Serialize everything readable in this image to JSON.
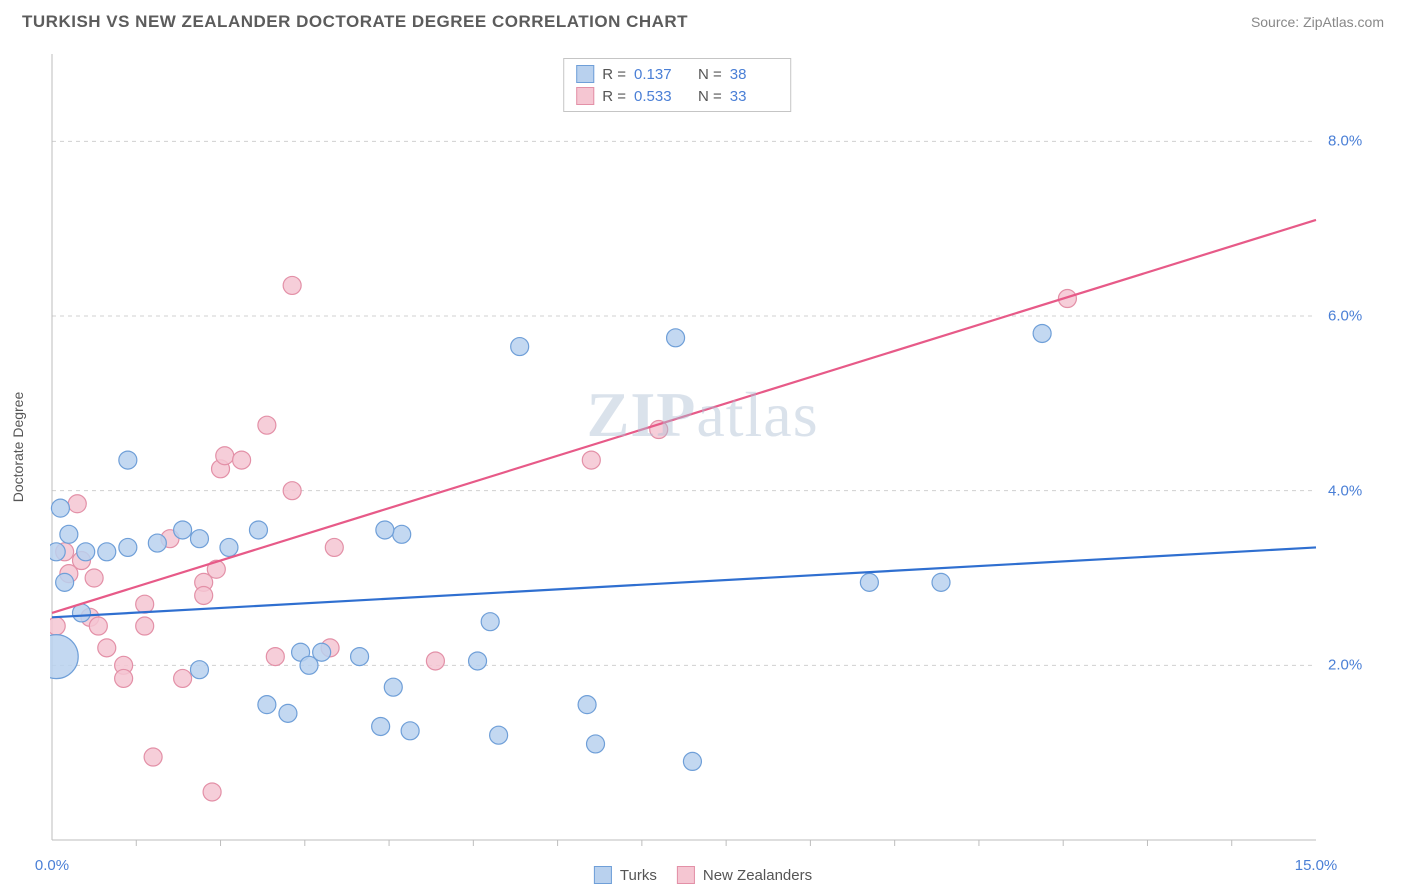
{
  "header": {
    "title": "TURKISH VS NEW ZEALANDER DOCTORATE DEGREE CORRELATION CHART",
    "source_prefix": "Source: ",
    "source_name": "ZipAtlas.com"
  },
  "ylabel": "Doctorate Degree",
  "watermark": {
    "bold": "ZIP",
    "rest": "atlas"
  },
  "chart": {
    "type": "scatter-with-regression",
    "xlim": [
      0,
      15
    ],
    "ylim": [
      0,
      9
    ],
    "x_ticks_minor": [
      1,
      2,
      3,
      4,
      5,
      6,
      7,
      8,
      9,
      10,
      11,
      12,
      13,
      14
    ],
    "x_tick_labels": [
      {
        "v": 0.0,
        "label": "0.0%"
      },
      {
        "v": 15.0,
        "label": "15.0%"
      }
    ],
    "y_gridlines": [
      2,
      4,
      6,
      8
    ],
    "y_tick_labels": [
      {
        "v": 2.0,
        "label": "2.0%"
      },
      {
        "v": 4.0,
        "label": "4.0%"
      },
      {
        "v": 6.0,
        "label": "6.0%"
      },
      {
        "v": 8.0,
        "label": "8.0%"
      }
    ],
    "background_color": "#ffffff",
    "grid_color": "#d0d0d0",
    "axis_color": "#bdbdbd",
    "tick_label_color": "#4a7fd6"
  },
  "series": {
    "turks": {
      "label": "Turks",
      "fill": "#b9d1ee",
      "stroke": "#6f9fd8",
      "line_color": "#2f6fd0",
      "marker_r_default": 9,
      "R": "0.137",
      "N": "38",
      "regression": {
        "x1": 0,
        "y1": 2.55,
        "x2": 15,
        "y2": 3.35
      },
      "points": [
        {
          "x": 0.05,
          "y": 2.1,
          "r": 22
        },
        {
          "x": 0.1,
          "y": 3.8
        },
        {
          "x": 0.2,
          "y": 3.5
        },
        {
          "x": 0.4,
          "y": 3.3
        },
        {
          "x": 0.9,
          "y": 4.35
        },
        {
          "x": 0.65,
          "y": 3.3
        },
        {
          "x": 0.9,
          "y": 3.35
        },
        {
          "x": 1.25,
          "y": 3.4
        },
        {
          "x": 1.55,
          "y": 3.55
        },
        {
          "x": 1.75,
          "y": 3.45
        },
        {
          "x": 2.1,
          "y": 3.35
        },
        {
          "x": 2.45,
          "y": 3.55
        },
        {
          "x": 1.75,
          "y": 1.95
        },
        {
          "x": 2.55,
          "y": 1.55
        },
        {
          "x": 2.8,
          "y": 1.45
        },
        {
          "x": 2.95,
          "y": 2.15
        },
        {
          "x": 3.05,
          "y": 2.0
        },
        {
          "x": 3.2,
          "y": 2.15
        },
        {
          "x": 3.65,
          "y": 2.1
        },
        {
          "x": 3.9,
          "y": 1.3
        },
        {
          "x": 4.05,
          "y": 1.75
        },
        {
          "x": 4.25,
          "y": 1.25
        },
        {
          "x": 5.2,
          "y": 2.5
        },
        {
          "x": 4.15,
          "y": 3.5
        },
        {
          "x": 3.95,
          "y": 3.55
        },
        {
          "x": 5.05,
          "y": 2.05
        },
        {
          "x": 5.3,
          "y": 1.2
        },
        {
          "x": 5.55,
          "y": 5.65
        },
        {
          "x": 6.35,
          "y": 1.55
        },
        {
          "x": 6.45,
          "y": 1.1
        },
        {
          "x": 7.4,
          "y": 5.75
        },
        {
          "x": 7.6,
          "y": 0.9
        },
        {
          "x": 9.7,
          "y": 2.95
        },
        {
          "x": 10.55,
          "y": 2.95
        },
        {
          "x": 11.75,
          "y": 5.8
        },
        {
          "x": 0.15,
          "y": 2.95
        },
        {
          "x": 0.35,
          "y": 2.6
        },
        {
          "x": 0.05,
          "y": 3.3
        }
      ]
    },
    "nz": {
      "label": "New Zealanders",
      "fill": "#f5c6d2",
      "stroke": "#e390a7",
      "line_color": "#e75a88",
      "marker_r_default": 9,
      "R": "0.533",
      "N": "33",
      "regression": {
        "x1": 0,
        "y1": 2.6,
        "x2": 15,
        "y2": 7.1
      },
      "points": [
        {
          "x": 0.15,
          "y": 3.3
        },
        {
          "x": 0.2,
          "y": 3.05
        },
        {
          "x": 0.35,
          "y": 3.2
        },
        {
          "x": 0.3,
          "y": 3.85
        },
        {
          "x": 0.65,
          "y": 2.2
        },
        {
          "x": 0.45,
          "y": 2.55
        },
        {
          "x": 0.55,
          "y": 2.45
        },
        {
          "x": 0.85,
          "y": 2.0
        },
        {
          "x": 0.85,
          "y": 1.85
        },
        {
          "x": 1.1,
          "y": 2.7
        },
        {
          "x": 1.1,
          "y": 2.45
        },
        {
          "x": 1.2,
          "y": 0.95
        },
        {
          "x": 1.4,
          "y": 3.45
        },
        {
          "x": 1.55,
          "y": 1.85
        },
        {
          "x": 1.8,
          "y": 2.95
        },
        {
          "x": 1.8,
          "y": 2.8
        },
        {
          "x": 1.95,
          "y": 3.1
        },
        {
          "x": 1.9,
          "y": 0.55
        },
        {
          "x": 2.0,
          "y": 4.25
        },
        {
          "x": 2.05,
          "y": 4.4
        },
        {
          "x": 2.25,
          "y": 4.35
        },
        {
          "x": 2.55,
          "y": 4.75
        },
        {
          "x": 2.65,
          "y": 2.1
        },
        {
          "x": 2.85,
          "y": 4.0
        },
        {
          "x": 2.85,
          "y": 6.35
        },
        {
          "x": 3.3,
          "y": 2.2
        },
        {
          "x": 3.35,
          "y": 3.35
        },
        {
          "x": 4.55,
          "y": 2.05
        },
        {
          "x": 6.4,
          "y": 4.35
        },
        {
          "x": 7.2,
          "y": 4.7
        },
        {
          "x": 12.05,
          "y": 6.2
        },
        {
          "x": 0.05,
          "y": 2.45
        },
        {
          "x": 0.5,
          "y": 3.0
        }
      ]
    }
  },
  "bottom_legend": [
    {
      "key": "turks"
    },
    {
      "key": "nz"
    }
  ]
}
